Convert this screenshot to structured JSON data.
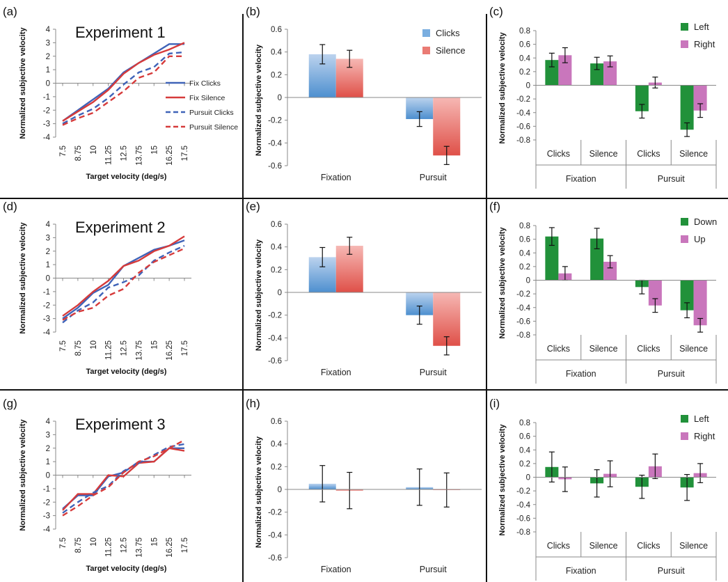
{
  "chart_data": [
    {
      "panel": "(a)",
      "type": "line",
      "title": "Experiment 1",
      "xlabel": "Target velocity (deg/s)",
      "ylabel": "Normalized subjective velocity",
      "x": [
        "7.5",
        "8.75",
        "10",
        "11.25",
        "12.5",
        "13.75",
        "15",
        "16.25",
        "17.5"
      ],
      "ylim": [
        -4,
        4
      ],
      "yticks": [
        -4,
        -3,
        -2,
        -1,
        0,
        1,
        2,
        3,
        4
      ],
      "legend": "right",
      "series": [
        {
          "name": "Fix Clicks",
          "color": "#3f63b8",
          "dash": false,
          "values": [
            -2.8,
            -2.0,
            -1.2,
            -0.4,
            0.8,
            1.5,
            2.2,
            2.9,
            2.9
          ]
        },
        {
          "name": "Fix Silence",
          "color": "#d63b3b",
          "dash": false,
          "values": [
            -2.8,
            -2.1,
            -1.4,
            -0.5,
            0.7,
            1.5,
            2.1,
            2.5,
            3.0
          ]
        },
        {
          "name": "Pursuit Clicks",
          "color": "#3f63b8",
          "dash": true,
          "values": [
            -3.0,
            -2.4,
            -1.9,
            -1.1,
            -0.1,
            0.8,
            1.2,
            2.2,
            2.3
          ]
        },
        {
          "name": "Pursuit Silence",
          "color": "#d63b3b",
          "dash": true,
          "values": [
            -3.1,
            -2.6,
            -2.2,
            -1.4,
            -0.6,
            0.4,
            0.8,
            2.0,
            2.0
          ]
        }
      ]
    },
    {
      "panel": "(b)",
      "type": "bar",
      "ylabel": "Normalized subjective velocity",
      "categories": [
        "Fixation",
        "Pursuit"
      ],
      "ylim": [
        -0.6,
        0.6
      ],
      "yticks": [
        -0.6,
        -0.4,
        -0.2,
        0,
        0.2,
        0.4,
        0.6
      ],
      "ytick_labels": [
        "-0.6",
        "-0.4",
        "-0.2",
        "0",
        "0.2",
        "0.4",
        "0.6"
      ],
      "legend": "top-right",
      "series": [
        {
          "name": "Clicks",
          "color": "blue",
          "values": [
            0.38,
            -0.19
          ],
          "errors": [
            0.085,
            0.065
          ]
        },
        {
          "name": "Silence",
          "color": "red",
          "values": [
            0.34,
            -0.51
          ],
          "errors": [
            0.075,
            0.08
          ]
        }
      ]
    },
    {
      "panel": "(c)",
      "type": "bar",
      "ylabel": "Normalized subjective velocity",
      "groups": [
        "Fixation",
        "Pursuit"
      ],
      "categories": [
        "Clicks",
        "Silence",
        "Clicks",
        "Silence"
      ],
      "ylim": [
        -0.8,
        0.8
      ],
      "yticks": [
        -0.8,
        -0.6,
        -0.4,
        -0.2,
        0,
        0.2,
        0.4,
        0.6,
        0.8
      ],
      "ytick_labels": [
        "-0.8",
        "-0.6",
        "-0.4",
        "-0.2",
        "0",
        "0.2",
        "0.4",
        "0.6",
        "0.8"
      ],
      "legend": "top-right",
      "series": [
        {
          "name": "Left",
          "color": "green",
          "values": [
            0.37,
            0.32,
            -0.38,
            -0.65
          ],
          "errors": [
            0.1,
            0.09,
            0.1,
            0.1
          ]
        },
        {
          "name": "Right",
          "color": "pink",
          "values": [
            0.44,
            0.35,
            0.04,
            -0.37
          ],
          "errors": [
            0.11,
            0.08,
            0.08,
            0.1
          ]
        }
      ]
    },
    {
      "panel": "(d)",
      "type": "line",
      "title": "Experiment 2",
      "xlabel": "Target velocity (deg/s)",
      "ylabel": "Normalized subjective velocity",
      "x": [
        "7.5",
        "8.75",
        "10",
        "11.25",
        "12.5",
        "13.75",
        "15",
        "16.25",
        "17.5"
      ],
      "ylim": [
        -4,
        4
      ],
      "yticks": [
        -4,
        -3,
        -2,
        -1,
        0,
        1,
        2,
        3,
        4
      ],
      "series": [
        {
          "name": "Fix Clicks",
          "color": "#3f63b8",
          "dash": false,
          "values": [
            -3.0,
            -2.2,
            -1.1,
            -0.5,
            0.9,
            1.5,
            2.1,
            2.4,
            2.8
          ]
        },
        {
          "name": "Fix Silence",
          "color": "#d63b3b",
          "dash": false,
          "values": [
            -2.8,
            -2.0,
            -1.0,
            -0.2,
            0.9,
            1.3,
            2.0,
            2.4,
            3.1
          ]
        },
        {
          "name": "Pursuit Clicks",
          "color": "#3f63b8",
          "dash": true,
          "values": [
            -3.3,
            -2.4,
            -1.8,
            -0.7,
            -0.3,
            0.2,
            1.3,
            1.9,
            2.4
          ]
        },
        {
          "name": "Pursuit Silence",
          "color": "#d63b3b",
          "dash": true,
          "values": [
            -3.1,
            -2.5,
            -2.2,
            -1.3,
            -0.8,
            0.4,
            1.2,
            1.7,
            2.2
          ]
        }
      ]
    },
    {
      "panel": "(e)",
      "type": "bar",
      "ylabel": "Normalized subjective velocity",
      "categories": [
        "Fixation",
        "Pursuit"
      ],
      "ylim": [
        -0.6,
        0.6
      ],
      "yticks": [
        -0.6,
        -0.4,
        -0.2,
        0,
        0.2,
        0.4,
        0.6
      ],
      "ytick_labels": [
        "-0.6",
        "-0.4",
        "-0.2",
        "0",
        "0.2",
        "0.4",
        "0.6"
      ],
      "series": [
        {
          "name": "Clicks",
          "color": "blue",
          "values": [
            0.31,
            -0.2
          ],
          "errors": [
            0.085,
            0.08
          ]
        },
        {
          "name": "Silence",
          "color": "red",
          "values": [
            0.41,
            -0.47
          ],
          "errors": [
            0.075,
            0.08
          ]
        }
      ]
    },
    {
      "panel": "(f)",
      "type": "bar",
      "ylabel": "Normalized subjective velocity",
      "groups": [
        "Fixation",
        "Pursuit"
      ],
      "categories": [
        "Clicks",
        "Silence",
        "Clicks",
        "Silence"
      ],
      "ylim": [
        -0.8,
        0.8
      ],
      "yticks": [
        -0.8,
        -0.6,
        -0.4,
        -0.2,
        0,
        0.2,
        0.4,
        0.6,
        0.8
      ],
      "ytick_labels": [
        "-0.8",
        "-0.6",
        "-0.4",
        "-0.2",
        "0",
        "0.2",
        "0.4",
        "0.6",
        "0.8"
      ],
      "legend": "top-right",
      "series": [
        {
          "name": "Down",
          "color": "green",
          "values": [
            0.64,
            0.61,
            -0.1,
            -0.44
          ],
          "errors": [
            0.13,
            0.15,
            0.1,
            0.11
          ]
        },
        {
          "name": "Up",
          "color": "pink",
          "values": [
            0.1,
            0.27,
            -0.37,
            -0.66
          ],
          "errors": [
            0.1,
            0.09,
            0.1,
            0.1
          ]
        }
      ]
    },
    {
      "panel": "(g)",
      "type": "line",
      "title": "Experiment 3",
      "xlabel": "Target velocity (deg/s)",
      "ylabel": "Normalized subjective velocity",
      "x": [
        "7.5",
        "8.75",
        "10",
        "11.25",
        "12.5",
        "13.75",
        "15",
        "16.25",
        "17.5"
      ],
      "ylim": [
        -4,
        4
      ],
      "yticks": [
        -4,
        -3,
        -2,
        -1,
        0,
        1,
        2,
        3,
        4
      ],
      "series": [
        {
          "name": "Fix Clicks",
          "color": "#3f63b8",
          "dash": false,
          "values": [
            -2.5,
            -1.5,
            -1.5,
            -0.1,
            0.2,
            1.0,
            1.0,
            2.0,
            2.0
          ]
        },
        {
          "name": "Fix Silence",
          "color": "#d63b3b",
          "dash": false,
          "values": [
            -2.6,
            -1.4,
            -1.4,
            0.0,
            -0.1,
            0.9,
            1.0,
            2.0,
            1.8
          ]
        },
        {
          "name": "Pursuit Clicks",
          "color": "#3f63b8",
          "dash": true,
          "values": [
            -2.8,
            -2.0,
            -1.3,
            -0.8,
            0.3,
            0.9,
            1.5,
            2.1,
            2.3
          ]
        },
        {
          "name": "Pursuit Silence",
          "color": "#d63b3b",
          "dash": true,
          "values": [
            -3.0,
            -2.3,
            -1.5,
            -0.9,
            0.2,
            1.0,
            1.4,
            2.0,
            2.6
          ]
        }
      ]
    },
    {
      "panel": "(h)",
      "type": "bar",
      "ylabel": "Normalized subjective velocity",
      "categories": [
        "Fixation",
        "Pursuit"
      ],
      "ylim": [
        -0.6,
        0.6
      ],
      "yticks": [
        -0.6,
        -0.4,
        -0.2,
        0,
        0.2,
        0.4,
        0.6
      ],
      "ytick_labels": [
        "-0.6",
        "-0.4",
        "-0.2",
        "0",
        "0.2",
        "0.4",
        "0.6"
      ],
      "series": [
        {
          "name": "Clicks",
          "color": "blue",
          "values": [
            0.05,
            0.02
          ],
          "errors": [
            0.16,
            0.16
          ]
        },
        {
          "name": "Silence",
          "color": "red",
          "values": [
            -0.01,
            -0.005
          ],
          "errors": [
            0.16,
            0.15
          ]
        }
      ]
    },
    {
      "panel": "(i)",
      "type": "bar",
      "ylabel": "Normalized subjective velocity",
      "groups": [
        "Fixation",
        "Pursuit"
      ],
      "categories": [
        "Clicks",
        "Silence",
        "Clicks",
        "Silence"
      ],
      "ylim": [
        -0.8,
        0.8
      ],
      "yticks": [
        -0.8,
        -0.6,
        -0.4,
        -0.2,
        0,
        0.2,
        0.4,
        0.6,
        0.8
      ],
      "ytick_labels": [
        "-0.8",
        "-0.6",
        "-0.4",
        "-0.2",
        "0",
        "0.2",
        "0.4",
        "0.6",
        "0.8"
      ],
      "legend": "top-right",
      "series": [
        {
          "name": "Left",
          "color": "green",
          "values": [
            0.15,
            -0.09,
            -0.14,
            -0.15
          ],
          "errors": [
            0.22,
            0.2,
            0.17,
            0.19
          ]
        },
        {
          "name": "Right",
          "color": "pink",
          "values": [
            -0.03,
            0.05,
            0.16,
            0.06
          ],
          "errors": [
            0.18,
            0.19,
            0.18,
            0.14
          ]
        }
      ]
    }
  ]
}
